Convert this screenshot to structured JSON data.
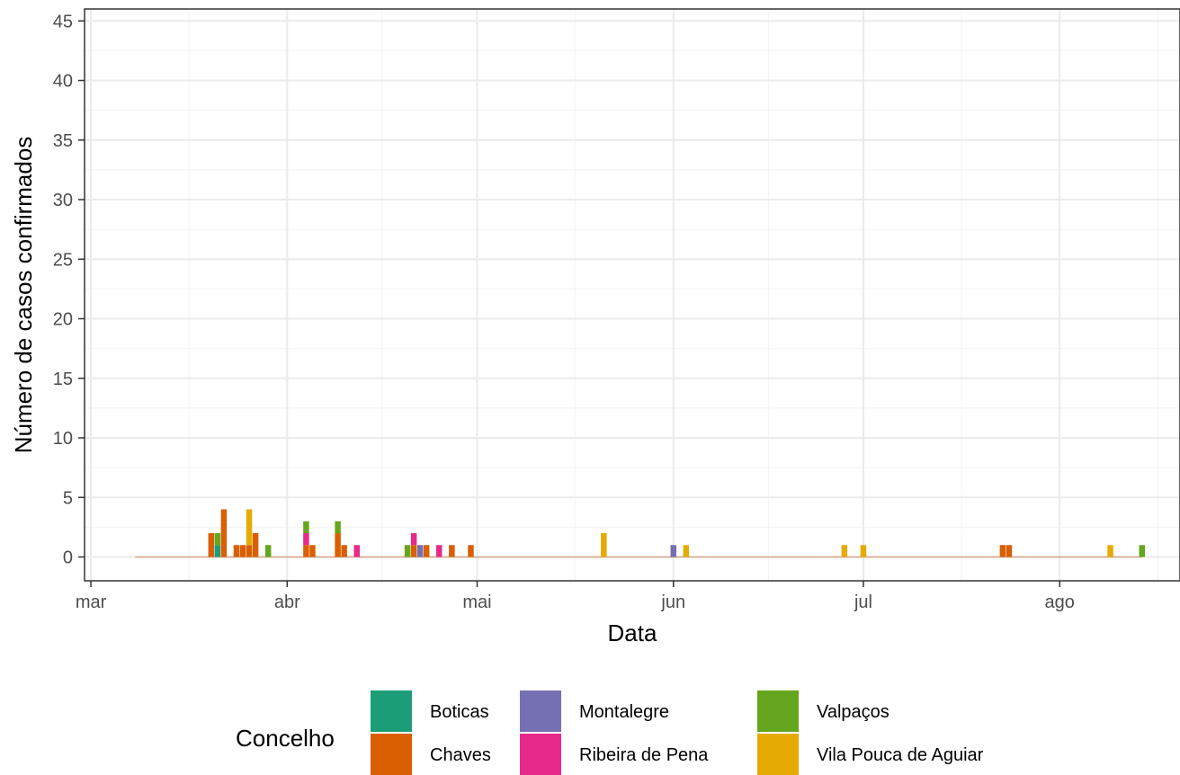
{
  "chart_data": {
    "type": "bar",
    "stacked": true,
    "xlabel": "Data",
    "ylabel": "Número de casos confirmados",
    "ylim": [
      -2,
      46
    ],
    "yticks": [
      0,
      5,
      10,
      15,
      20,
      25,
      30,
      35,
      40,
      45
    ],
    "x_range": [
      "2020-02-29",
      "2020-08-20"
    ],
    "x_ticks": [
      {
        "date": "2020-03-01",
        "label": "mar"
      },
      {
        "date": "2020-04-01",
        "label": "abr"
      },
      {
        "date": "2020-05-01",
        "label": "mai"
      },
      {
        "date": "2020-06-01",
        "label": "jun"
      },
      {
        "date": "2020-07-01",
        "label": "jul"
      },
      {
        "date": "2020-08-01",
        "label": "ago"
      }
    ],
    "zero_line_from": "2020-03-08",
    "zero_line_to": "2020-08-14",
    "legend": {
      "title": "Concelho",
      "position": "bottom",
      "columns": [
        [
          "Boticas",
          "Chaves"
        ],
        [
          "Montalegre",
          "Ribeira de Pena"
        ],
        [
          "Valpaços",
          "Vila Pouca de Aguiar"
        ]
      ]
    },
    "series": [
      {
        "name": "Boticas",
        "color": "#1b9e77",
        "points": [
          [
            "2020-03-21",
            1
          ]
        ]
      },
      {
        "name": "Chaves",
        "color": "#d95f02",
        "points": [
          [
            "2020-03-20",
            2
          ],
          [
            "2020-03-22",
            4
          ],
          [
            "2020-03-24",
            1
          ],
          [
            "2020-03-25",
            1
          ],
          [
            "2020-03-26",
            1
          ],
          [
            "2020-03-27",
            2
          ],
          [
            "2020-04-04",
            1
          ],
          [
            "2020-04-05",
            1
          ],
          [
            "2020-04-09",
            2
          ],
          [
            "2020-04-10",
            1
          ],
          [
            "2020-04-21",
            1
          ],
          [
            "2020-04-23",
            1
          ],
          [
            "2020-04-27",
            1
          ],
          [
            "2020-04-30",
            1
          ],
          [
            "2020-07-23",
            1
          ],
          [
            "2020-07-24",
            1
          ]
        ]
      },
      {
        "name": "Montalegre",
        "color": "#7570b3",
        "points": [
          [
            "2020-04-22",
            1
          ],
          [
            "2020-06-01",
            1
          ]
        ]
      },
      {
        "name": "Ribeira de Pena",
        "color": "#e7298a",
        "points": [
          [
            "2020-04-04",
            1
          ],
          [
            "2020-04-12",
            1
          ],
          [
            "2020-04-21",
            1
          ],
          [
            "2020-04-25",
            1
          ]
        ]
      },
      {
        "name": "Valpaços",
        "color": "#66a61e",
        "points": [
          [
            "2020-03-21",
            1
          ],
          [
            "2020-03-29",
            1
          ],
          [
            "2020-04-04",
            1
          ],
          [
            "2020-04-09",
            1
          ],
          [
            "2020-04-20",
            1
          ],
          [
            "2020-08-14",
            1
          ]
        ]
      },
      {
        "name": "Vila Pouca de Aguiar",
        "color": "#e6ab02",
        "points": [
          [
            "2020-03-26",
            3
          ],
          [
            "2020-05-21",
            2
          ],
          [
            "2020-06-03",
            1
          ],
          [
            "2020-06-28",
            1
          ],
          [
            "2020-07-01",
            1
          ],
          [
            "2020-08-09",
            1
          ]
        ]
      }
    ]
  }
}
